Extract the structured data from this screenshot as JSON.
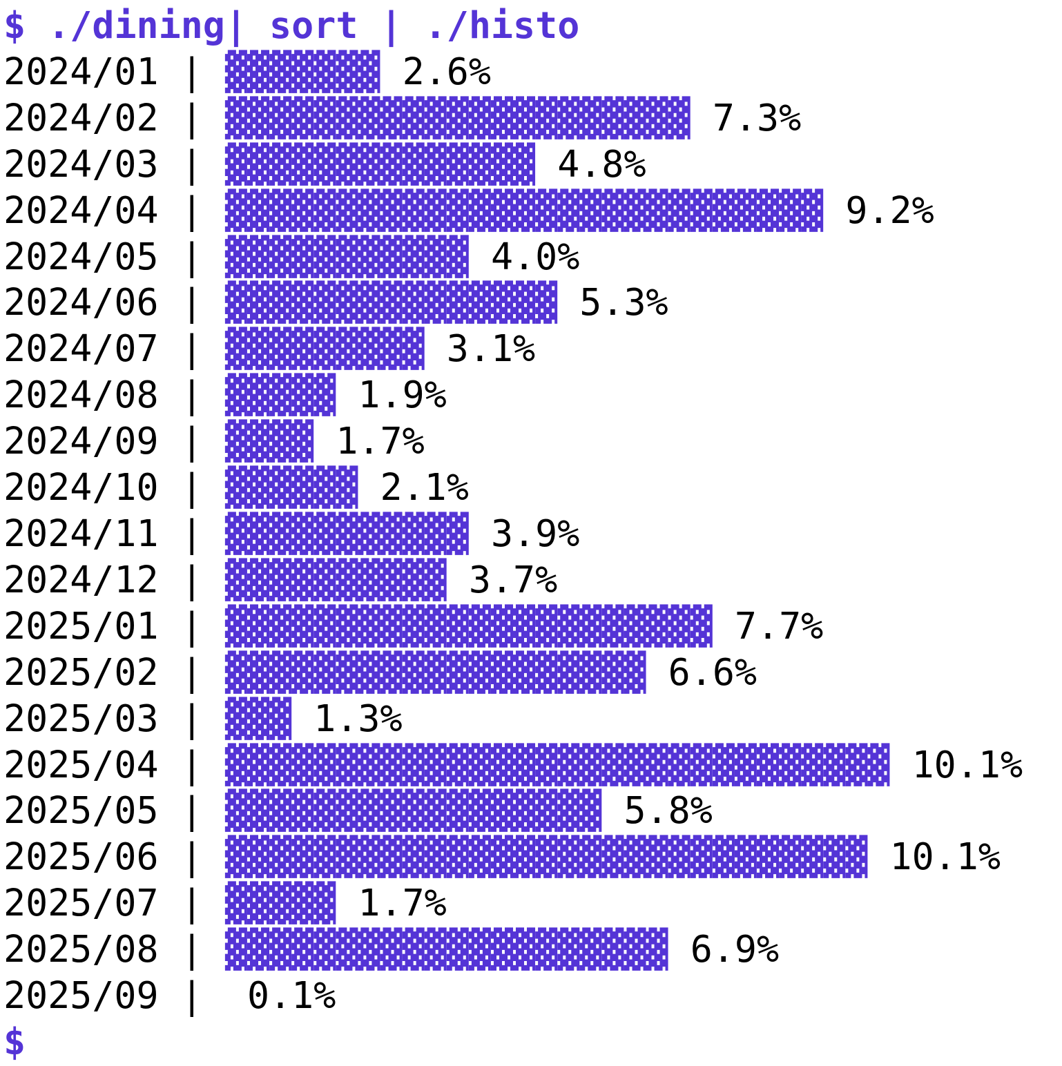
{
  "terminal": {
    "prompt": "$",
    "command": " ./dining| sort | ./histo",
    "separator": " | ",
    "block_char": "▓",
    "final_prompt": "$"
  },
  "colors": {
    "accent_purple": "#5434d6",
    "text": "#000000",
    "background": "#ffffff"
  },
  "rows": [
    {
      "month": "2024/01",
      "blocks": 7,
      "pct": "2.6%"
    },
    {
      "month": "2024/02",
      "blocks": 21,
      "pct": "7.3%"
    },
    {
      "month": "2024/03",
      "blocks": 14,
      "pct": "4.8%"
    },
    {
      "month": "2024/04",
      "blocks": 27,
      "pct": "9.2%"
    },
    {
      "month": "2024/05",
      "blocks": 11,
      "pct": "4.0%"
    },
    {
      "month": "2024/06",
      "blocks": 15,
      "pct": "5.3%"
    },
    {
      "month": "2024/07",
      "blocks": 9,
      "pct": "3.1%"
    },
    {
      "month": "2024/08",
      "blocks": 5,
      "pct": "1.9%"
    },
    {
      "month": "2024/09",
      "blocks": 4,
      "pct": "1.7%"
    },
    {
      "month": "2024/10",
      "blocks": 6,
      "pct": "2.1%"
    },
    {
      "month": "2024/11",
      "blocks": 11,
      "pct": "3.9%"
    },
    {
      "month": "2024/12",
      "blocks": 10,
      "pct": "3.7%"
    },
    {
      "month": "2025/01",
      "blocks": 22,
      "pct": "7.7%"
    },
    {
      "month": "2025/02",
      "blocks": 19,
      "pct": "6.6%"
    },
    {
      "month": "2025/03",
      "blocks": 3,
      "pct": "1.3%"
    },
    {
      "month": "2025/04",
      "blocks": 30,
      "pct": "10.1%"
    },
    {
      "month": "2025/05",
      "blocks": 17,
      "pct": "5.8%"
    },
    {
      "month": "2025/06",
      "blocks": 29,
      "pct": "10.1%"
    },
    {
      "month": "2025/07",
      "blocks": 5,
      "pct": "1.7%"
    },
    {
      "month": "2025/08",
      "blocks": 20,
      "pct": "6.9%"
    },
    {
      "month": "2025/09",
      "blocks": 0,
      "pct": "0.1%"
    }
  ],
  "chart_data": {
    "type": "bar",
    "orientation": "horizontal",
    "title": "$ ./dining| sort | ./histo",
    "categories": [
      "2024/01",
      "2024/02",
      "2024/03",
      "2024/04",
      "2024/05",
      "2024/06",
      "2024/07",
      "2024/08",
      "2024/09",
      "2024/10",
      "2024/11",
      "2024/12",
      "2025/01",
      "2025/02",
      "2025/03",
      "2025/04",
      "2025/05",
      "2025/06",
      "2025/07",
      "2025/08",
      "2025/09"
    ],
    "values": [
      2.6,
      7.3,
      4.8,
      9.2,
      4.0,
      5.3,
      3.1,
      1.9,
      1.7,
      2.1,
      3.9,
      3.7,
      7.7,
      6.6,
      1.3,
      10.1,
      5.8,
      10.1,
      1.7,
      6.9,
      0.1
    ],
    "bar_block_counts": [
      7,
      21,
      14,
      27,
      11,
      15,
      9,
      5,
      4,
      6,
      11,
      10,
      22,
      19,
      3,
      30,
      17,
      29,
      5,
      20,
      0
    ],
    "unit": "%",
    "xlabel": "",
    "ylabel": "",
    "xlim": [
      0,
      10.5
    ],
    "grid": false,
    "legend": false
  }
}
